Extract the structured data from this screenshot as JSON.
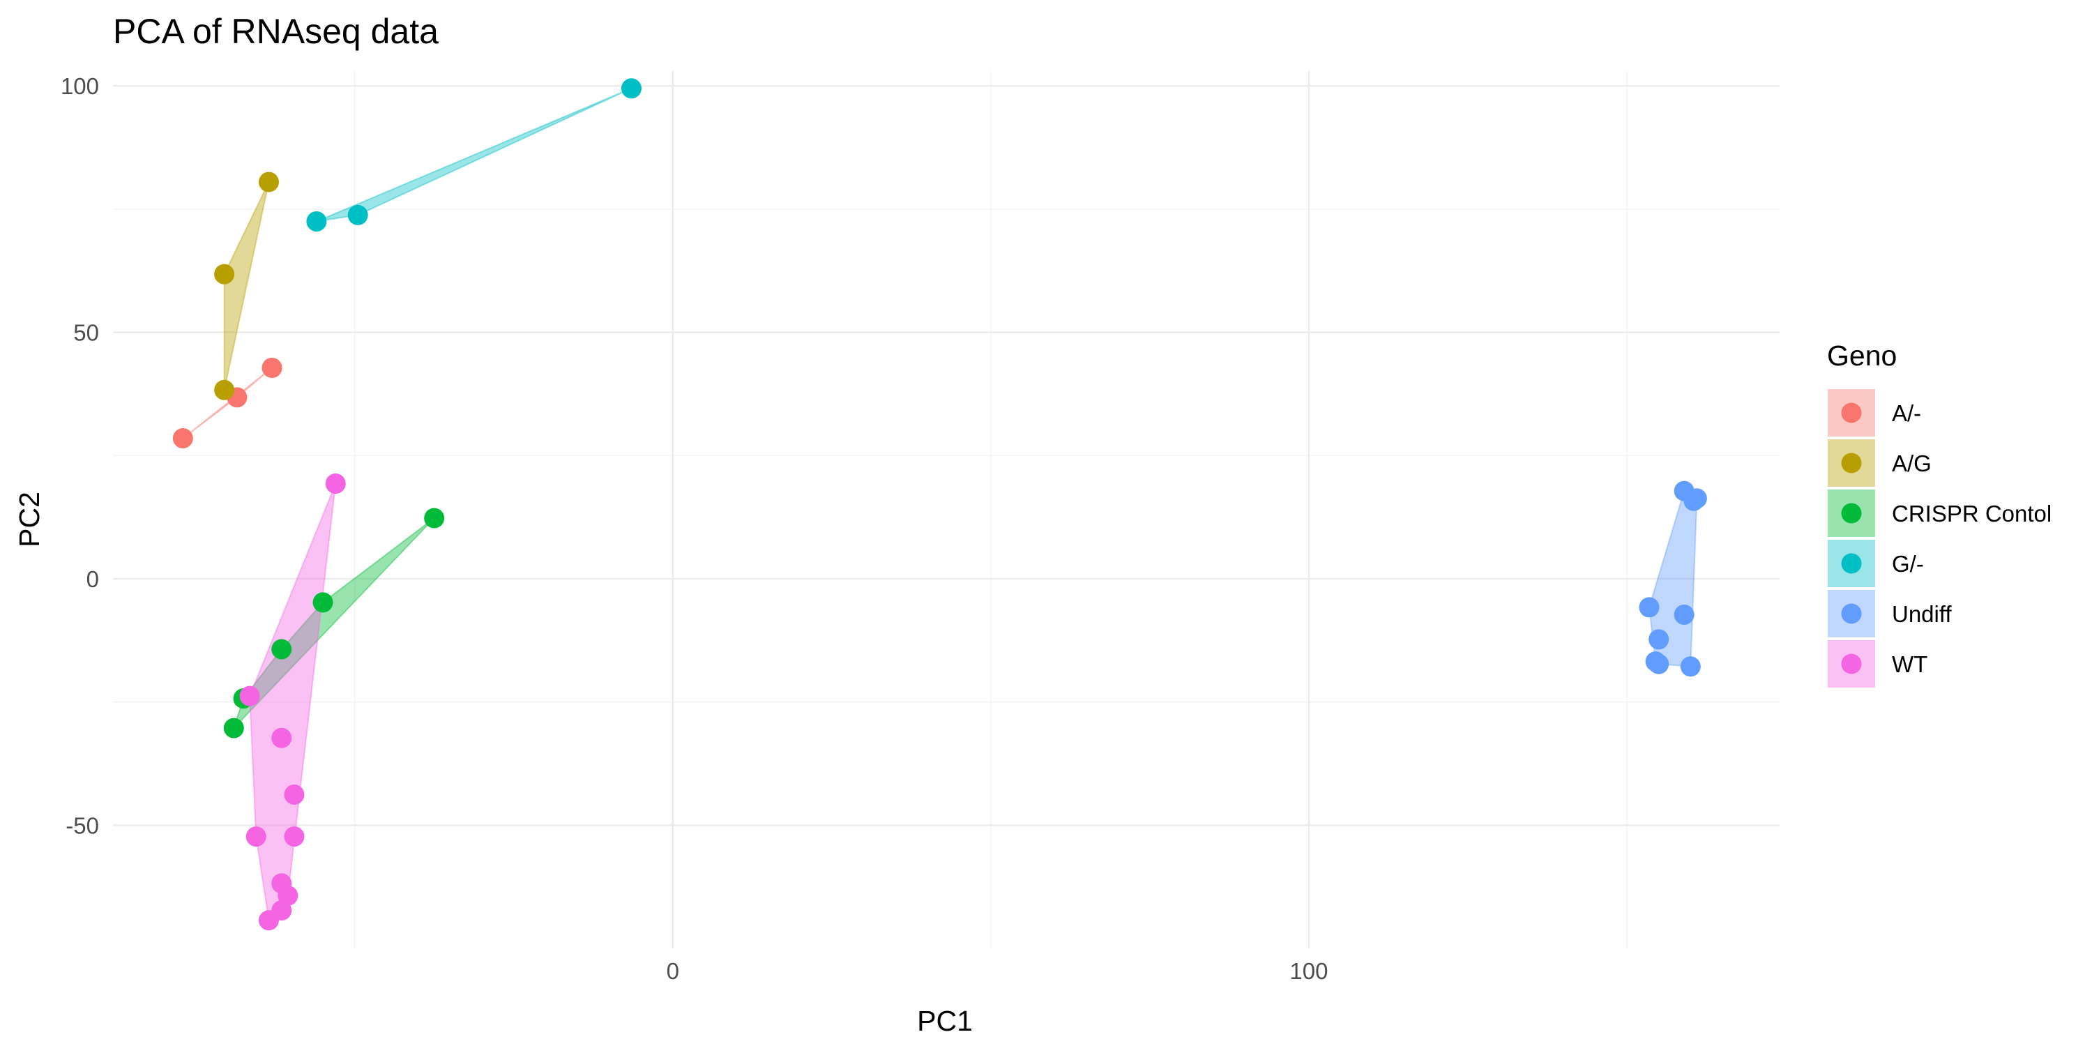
{
  "chart_data": {
    "type": "scatter",
    "title": "PCA of RNAseq data",
    "xlabel": "PC1",
    "ylabel": "PC2",
    "xlim": [
      -88,
      174
    ],
    "ylim": [
      -75,
      103
    ],
    "x_ticks": [
      0,
      100
    ],
    "y_ticks": [
      -50,
      0,
      50,
      100
    ],
    "x_minor_ticks": [
      -50,
      50,
      150
    ],
    "y_minor_ticks": [
      -25,
      25,
      75
    ],
    "grid": true,
    "legend": {
      "title": "Geno",
      "position": "right"
    },
    "series": [
      {
        "name": "A/-",
        "color": "#F8766D",
        "points": [
          [
            -77,
            28.5
          ],
          [
            -68.5,
            36.8
          ],
          [
            -63,
            42.8
          ]
        ]
      },
      {
        "name": "A/G",
        "color": "#B79F00",
        "points": [
          [
            -70.5,
            38.3
          ],
          [
            -70.5,
            61.8
          ],
          [
            -63.5,
            80.5
          ]
        ]
      },
      {
        "name": "CRISPR Contol",
        "color": "#00BA38",
        "points": [
          [
            -69,
            -30.3
          ],
          [
            -67.5,
            -24.3
          ],
          [
            -61.5,
            -14.3
          ],
          [
            -55,
            -4.8
          ],
          [
            -37.5,
            12.3
          ]
        ]
      },
      {
        "name": "G/-",
        "color": "#00BFC4",
        "points": [
          [
            -56,
            72.5
          ],
          [
            -49.5,
            73.8
          ],
          [
            -6.5,
            99.5
          ]
        ]
      },
      {
        "name": "Undiff",
        "color": "#619CFF",
        "points": [
          [
            153.5,
            -5.8
          ],
          [
            155,
            -12.3
          ],
          [
            154.5,
            -16.8
          ],
          [
            155,
            -17.3
          ],
          [
            159,
            17.8
          ],
          [
            161,
            16.3
          ],
          [
            160.5,
            15.8
          ],
          [
            159,
            -7.3
          ],
          [
            160,
            -17.8
          ]
        ]
      },
      {
        "name": "WT",
        "color": "#F564E3",
        "points": [
          [
            -53,
            19.3
          ],
          [
            -66.5,
            -23.8
          ],
          [
            -61.5,
            -32.3
          ],
          [
            -59.5,
            -43.8
          ],
          [
            -65.5,
            -52.3
          ],
          [
            -59.5,
            -52.3
          ],
          [
            -61.5,
            -61.8
          ],
          [
            -60.5,
            -64.3
          ],
          [
            -61.5,
            -67.3
          ],
          [
            -63.5,
            -69.3
          ]
        ]
      }
    ]
  }
}
